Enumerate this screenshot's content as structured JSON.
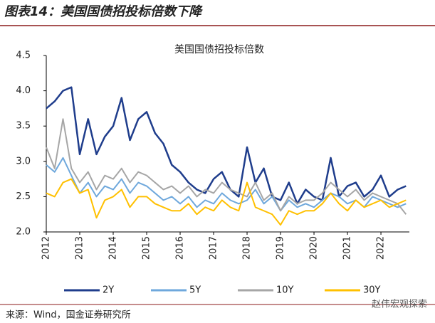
{
  "header": {
    "title": "图表14：美国国债招投标倍数下降"
  },
  "chart_data": {
    "type": "line",
    "title": "美国国债招投标倍数",
    "x": [
      2012,
      2012.25,
      2012.5,
      2012.75,
      2013,
      2013.25,
      2013.5,
      2013.75,
      2014,
      2014.25,
      2014.5,
      2014.75,
      2015,
      2015.25,
      2015.5,
      2015.75,
      2016,
      2016.25,
      2016.5,
      2016.75,
      2017,
      2017.25,
      2017.5,
      2017.75,
      2018,
      2018.25,
      2018.5,
      2018.75,
      2019,
      2019.25,
      2019.5,
      2019.75,
      2020,
      2020.25,
      2020.5,
      2020.75,
      2021,
      2021.25,
      2021.5,
      2021.75,
      2022,
      2022.25,
      2022.5,
      2022.75
    ],
    "series": [
      {
        "name": "2Y",
        "color": "#1f3d8c",
        "values": [
          3.75,
          3.85,
          4.0,
          4.05,
          3.1,
          3.6,
          3.1,
          3.35,
          3.5,
          3.9,
          3.3,
          3.6,
          3.7,
          3.4,
          3.25,
          2.95,
          2.85,
          2.7,
          2.6,
          2.55,
          2.75,
          2.85,
          2.6,
          2.5,
          3.2,
          2.7,
          2.9,
          2.5,
          2.45,
          2.7,
          2.4,
          2.6,
          2.5,
          2.45,
          3.05,
          2.5,
          2.65,
          2.7,
          2.5,
          2.6,
          2.8,
          2.5,
          2.6,
          2.65
        ]
      },
      {
        "name": "5Y",
        "color": "#6fa8dc",
        "values": [
          2.95,
          2.85,
          3.05,
          2.8,
          2.55,
          2.7,
          2.5,
          2.65,
          2.6,
          2.75,
          2.55,
          2.7,
          2.65,
          2.55,
          2.45,
          2.5,
          2.4,
          2.5,
          2.35,
          2.45,
          2.4,
          2.55,
          2.45,
          2.4,
          2.45,
          2.6,
          2.4,
          2.5,
          2.3,
          2.45,
          2.35,
          2.4,
          2.35,
          2.45,
          2.55,
          2.5,
          2.4,
          2.45,
          2.35,
          2.5,
          2.45,
          2.4,
          2.35,
          2.4
        ]
      },
      {
        "name": "10Y",
        "color": "#a6a6a6",
        "values": [
          3.2,
          2.9,
          3.6,
          2.9,
          2.7,
          2.85,
          2.6,
          2.8,
          2.75,
          2.9,
          2.7,
          2.85,
          2.8,
          2.7,
          2.6,
          2.65,
          2.55,
          2.65,
          2.5,
          2.6,
          2.55,
          2.7,
          2.6,
          2.55,
          2.5,
          2.7,
          2.45,
          2.55,
          2.3,
          2.5,
          2.4,
          2.45,
          2.45,
          2.55,
          2.7,
          2.6,
          2.5,
          2.6,
          2.45,
          2.55,
          2.5,
          2.45,
          2.4,
          2.25
        ]
      },
      {
        "name": "30Y",
        "color": "#ffc000",
        "values": [
          2.55,
          2.5,
          2.7,
          2.75,
          2.55,
          2.6,
          2.2,
          2.45,
          2.5,
          2.6,
          2.35,
          2.5,
          2.5,
          2.4,
          2.35,
          2.3,
          2.3,
          2.4,
          2.25,
          2.35,
          2.3,
          2.45,
          2.35,
          2.3,
          2.7,
          2.35,
          2.3,
          2.25,
          2.1,
          2.3,
          2.25,
          2.3,
          2.3,
          2.4,
          2.55,
          2.4,
          2.3,
          2.45,
          2.35,
          2.4,
          2.45,
          2.35,
          2.4,
          2.45
        ]
      }
    ],
    "xlim": [
      2012,
      2022.85
    ],
    "xticks": [
      2012,
      2013,
      2014,
      2015,
      2016,
      2017,
      2018,
      2019,
      2020,
      2021,
      2022
    ],
    "ylim": [
      2,
      4.5
    ],
    "yticks": [
      {
        "value": 2,
        "label": "2.0"
      },
      2.5,
      {
        "value": 3,
        "label": "3.0"
      },
      3.5,
      {
        "value": 4,
        "label": "4.0"
      },
      4.5
    ]
  },
  "footer": {
    "source": "来源：Wind，国金证券研究所",
    "watermark": "赵伟宏观探索"
  }
}
